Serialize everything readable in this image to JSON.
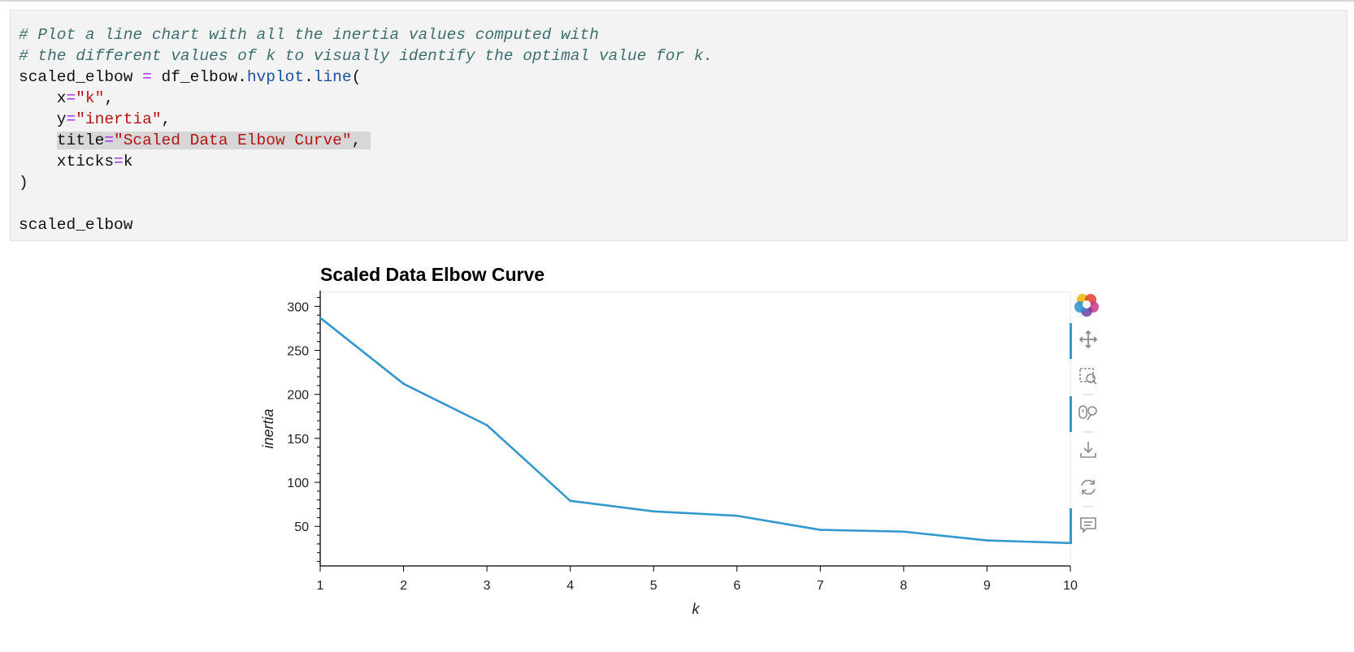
{
  "code": {
    "comment1": "# Plot a line chart with all the inertia values computed with",
    "comment2": "# the different values of k to visually identify the optimal value for k.",
    "line3": {
      "var": "scaled_elbow ",
      "eq": "=",
      "obj": " df_elbow.",
      "attr": "hvplot",
      "dot": ".",
      "method": "line",
      "paren": "("
    },
    "line4": {
      "indent": "    x",
      "eq": "=",
      "str": "\"k\"",
      "tail": ","
    },
    "line5": {
      "indent": "    y",
      "eq": "=",
      "str": "\"inertia\"",
      "tail": ","
    },
    "line6": {
      "indent": "    ",
      "key": "title",
      "eq": "=",
      "str": "\"Scaled Data Elbow Curve\"",
      "tail": ","
    },
    "line7": {
      "indent": "    xticks",
      "eq": "=",
      "val": "k"
    },
    "line8": ")",
    "line10": "scaled_elbow"
  },
  "chart_data": {
    "type": "line",
    "title": "Scaled Data Elbow Curve",
    "xlabel": "k",
    "ylabel": "inertia",
    "x": [
      1,
      2,
      3,
      4,
      5,
      6,
      7,
      8,
      9,
      10
    ],
    "values": [
      287,
      212,
      165,
      79,
      67,
      62,
      46,
      44,
      34,
      31
    ],
    "xlim": [
      1,
      10
    ],
    "ylim": [
      5,
      316
    ],
    "yticks": [
      50,
      100,
      150,
      200,
      250,
      300
    ],
    "xticks": [
      1,
      2,
      3,
      4,
      5,
      6,
      7,
      8,
      9,
      10
    ],
    "line_color": "#3399cc",
    "grid": false
  },
  "toolbar": {
    "items": [
      "bokeh-logo",
      "pan-tool",
      "box-zoom-tool",
      "wheel-zoom-tool",
      "save-tool",
      "reset-tool",
      "hover-tool"
    ],
    "active_color": "#3399cc"
  }
}
